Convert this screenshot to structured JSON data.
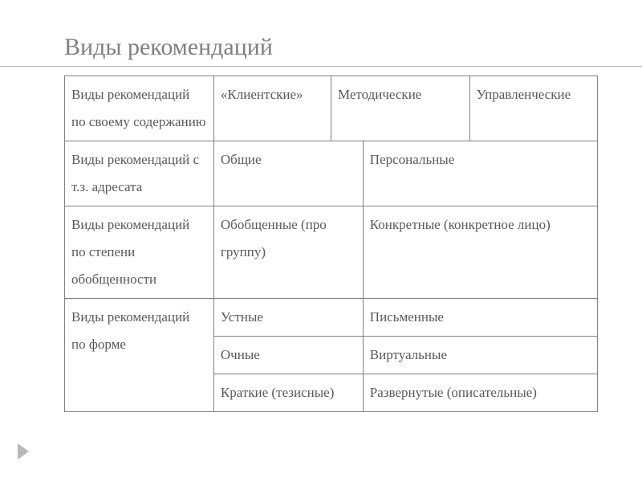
{
  "title": "Виды рекомендаций",
  "table": {
    "border_color": "#808080",
    "text_color": "#595959",
    "row1": {
      "label": "Виды рекомендаций по своему содержанию",
      "c1": "«Клиентские»",
      "c2": "Методические",
      "c3": "Управленческие"
    },
    "row2": {
      "label": "Виды рекомендаций с т.з. адресата",
      "c1": "Общие",
      "c2": "Персональные"
    },
    "row3": {
      "label": "Виды рекомендаций по степени обобщенности",
      "c1": "Обобщенные (про группу)",
      "c2": "Конкретные (конкретное лицо)"
    },
    "row4": {
      "label": "Виды рекомендаций по форме",
      "a1": "Устные",
      "a2": "Письменные",
      "b1": "Очные",
      "b2": "Виртуальные",
      "c1": "Краткие (тезисные)",
      "c2": "Развернутые (описательные)"
    }
  }
}
